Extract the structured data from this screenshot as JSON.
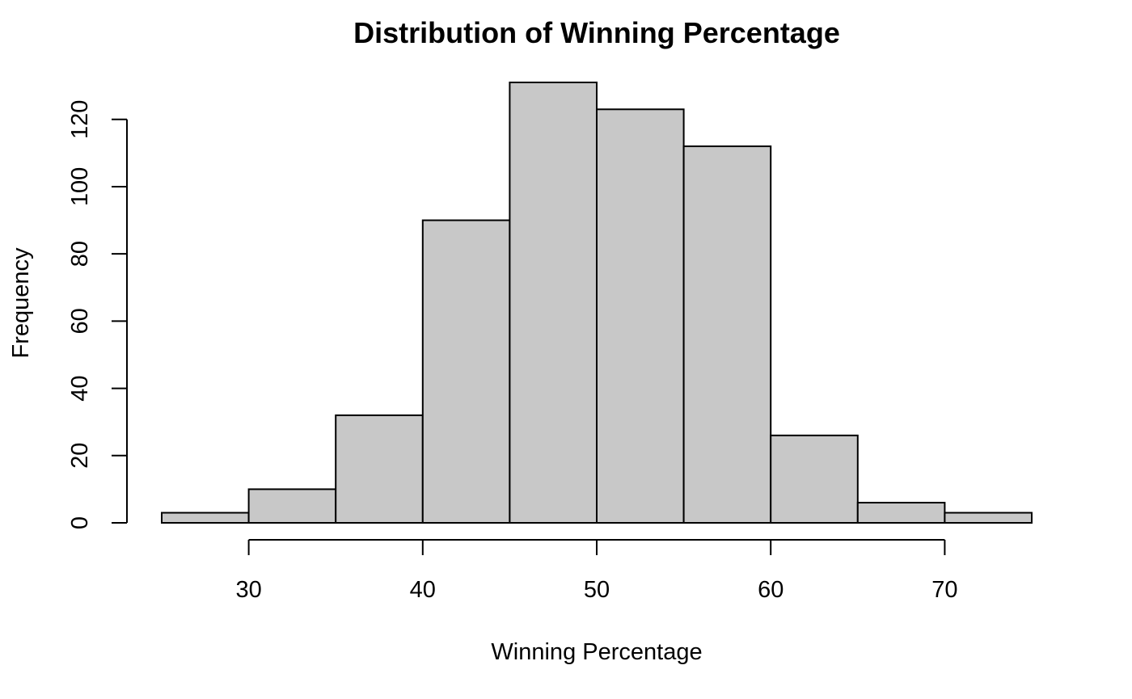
{
  "chart_data": {
    "type": "bar",
    "title": "Distribution of Winning Percentage",
    "xlabel": "Winning Percentage",
    "ylabel": "Frequency",
    "bins": [
      {
        "start": 25,
        "end": 30,
        "count": 3
      },
      {
        "start": 30,
        "end": 35,
        "count": 10
      },
      {
        "start": 35,
        "end": 40,
        "count": 32
      },
      {
        "start": 40,
        "end": 45,
        "count": 90
      },
      {
        "start": 45,
        "end": 50,
        "count": 131
      },
      {
        "start": 50,
        "end": 55,
        "count": 123
      },
      {
        "start": 55,
        "end": 60,
        "count": 112
      },
      {
        "start": 60,
        "end": 65,
        "count": 26
      },
      {
        "start": 65,
        "end": 70,
        "count": 6
      },
      {
        "start": 70,
        "end": 75,
        "count": 3
      }
    ],
    "x_ticks": [
      30,
      40,
      50,
      60,
      70
    ],
    "y_ticks": [
      0,
      20,
      40,
      60,
      80,
      100,
      120
    ],
    "xlim": [
      25,
      75
    ],
    "ylim": [
      0,
      131
    ],
    "bar_color": "#c8c8c8",
    "grid": false
  }
}
